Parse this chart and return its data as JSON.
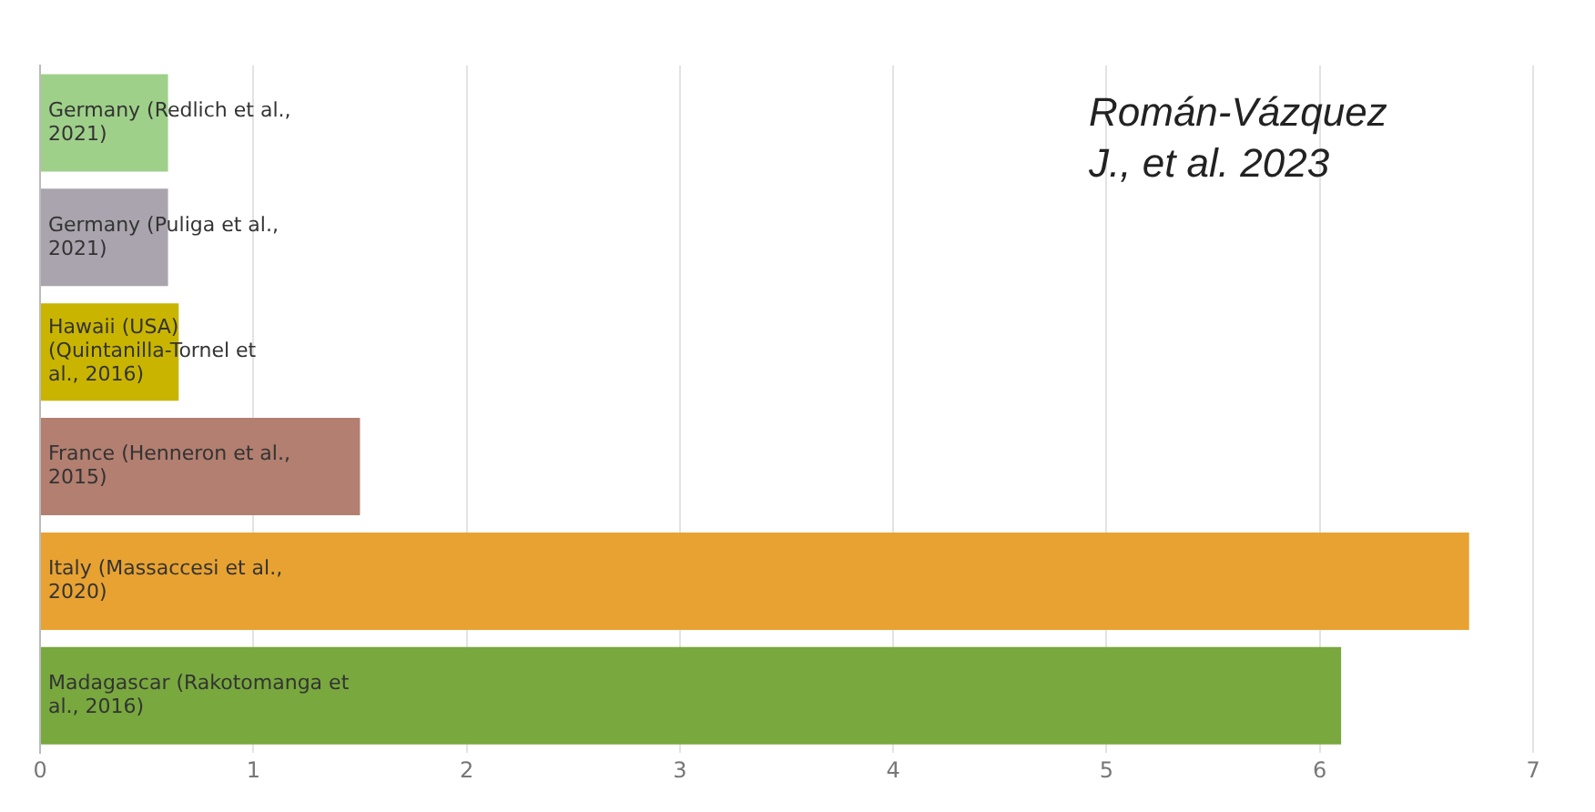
{
  "chart_data": {
    "type": "bar",
    "orientation": "horizontal",
    "categories": [
      "Germany (Redlich et al., 2021)",
      "Germany (Puliga et al., 2021)",
      "Hawaii (USA) (Quintanilla-Tornel et al., 2016)",
      "France (Henneron et al., 2015)",
      "Italy (Massaccesi et al., 2020)",
      "Madagascar (Rakotomanga et al., 2016)"
    ],
    "values": [
      0.6,
      0.6,
      0.65,
      1.5,
      6.7,
      6.1
    ],
    "colors": [
      "#9fd08a",
      "#a9a4ad",
      "#c9b500",
      "#b27f70",
      "#e8a232",
      "#78a83e"
    ],
    "xlim": [
      0,
      7
    ],
    "xticks": [
      0,
      1,
      2,
      3,
      4,
      5,
      6,
      7
    ],
    "grid": "x",
    "legend": false,
    "annotations": [
      "Román-Vázquez J., et al. 2023"
    ]
  }
}
